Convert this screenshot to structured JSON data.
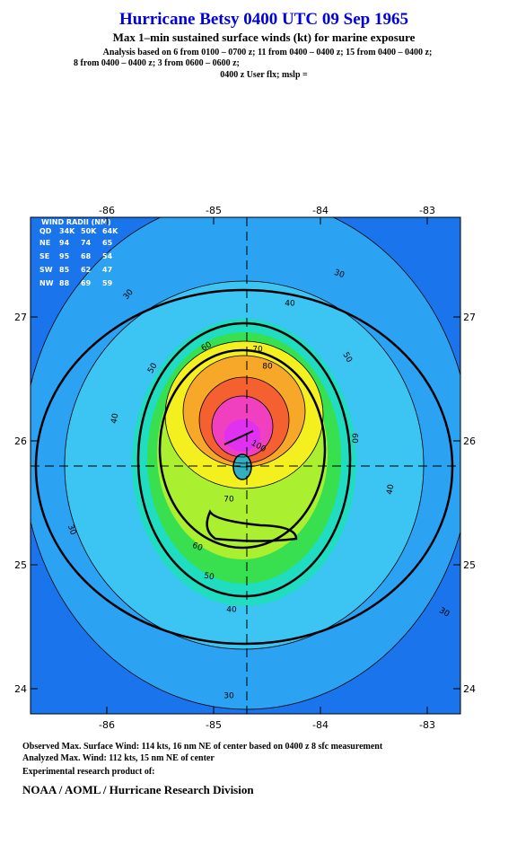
{
  "header": {
    "title": "Hurricane Betsy 0400 UTC 09 Sep 1965",
    "subtitle": "Max 1–min sustained surface winds (kt) for marine exposure",
    "analysis": [
      "Analysis based on  6 from 0100 – 0700 z;  11 from 0400 – 0400 z;  15 from 0400 – 0400 z;",
      "8 from 0400 – 0400 z;  3 from 0600 – 0600 z;",
      "0400 z User flx; mslp ="
    ]
  },
  "map": {
    "lon_ticks": [
      -86,
      -85,
      -84,
      -83
    ],
    "lat_ticks": [
      27,
      26,
      25,
      24
    ],
    "wind_radii": {
      "title": "WIND RADII (NM)",
      "header": [
        "QD",
        "34K",
        "50K",
        "64K"
      ],
      "rows": [
        [
          "NE",
          94,
          74,
          65
        ],
        [
          "SE",
          95,
          68,
          54
        ],
        [
          "SW",
          85,
          62,
          47
        ],
        [
          "NW",
          88,
          69,
          59
        ]
      ]
    },
    "contour_labels": [
      30,
      30,
      30,
      30,
      30,
      40,
      40,
      40,
      40,
      50,
      50,
      50,
      60,
      60,
      60,
      70,
      70,
      80,
      100
    ]
  },
  "footer": {
    "observed": "Observed Max. Surface Wind: 114 kts, 16 nm NE of center based on 0400 z 8 sfc measurement",
    "analyzed": "Analyzed Max. Wind: 112 kts, 15 nm NE of center",
    "note": "Experimental research product of:",
    "org": "NOAA / AOML / Hurricane Research Division"
  }
}
